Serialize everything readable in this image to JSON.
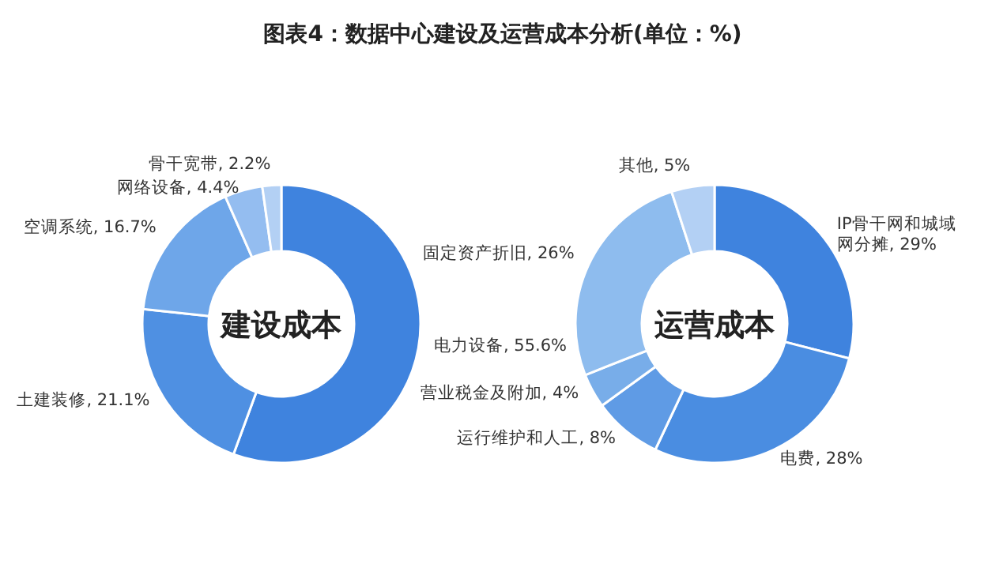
{
  "chart_data": [
    {
      "type": "donut",
      "title": "图表4：数据中心建设及运营成本分析(单位：%)",
      "annotations": [
        "建设成本"
      ],
      "categories": [
        "电力设备",
        "土建装修",
        "空调系统",
        "网络设备",
        "骨干宽带"
      ],
      "values": [
        55.6,
        21.1,
        16.7,
        4.4,
        2.2
      ],
      "value_labels": [
        "55.6%",
        "21.1%",
        "16.7%",
        "4.4%",
        "2.2%"
      ],
      "colors": [
        "#3f83de",
        "#4f90e2",
        "#6ea6e9",
        "#94bdf0",
        "#b3d0f4"
      ]
    },
    {
      "type": "donut",
      "annotations": [
        "运营成本"
      ],
      "categories": [
        "IP骨干网和城域网分摊",
        "电费",
        "运行维护和人工",
        "营业税金及附加",
        "固定资产折旧",
        "其他"
      ],
      "values": [
        29,
        28,
        8,
        4,
        26,
        5
      ],
      "value_labels": [
        "29%",
        "28%",
        "8%",
        "4%",
        "26%",
        "5%"
      ],
      "colors": [
        "#3f83de",
        "#4a8de1",
        "#5f9be5",
        "#78ade9",
        "#8ebcee",
        "#b3d0f4"
      ]
    }
  ]
}
